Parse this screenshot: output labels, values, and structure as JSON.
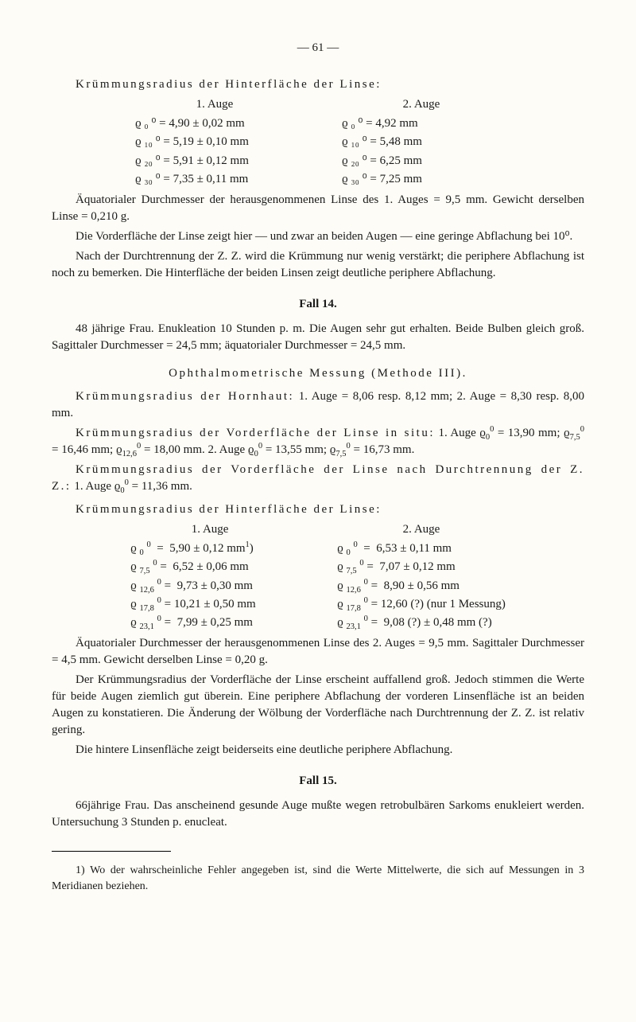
{
  "pageNumber": "— 61 —",
  "topTable": {
    "title": "Krümmungsradius der Hinterfläche der Linse:",
    "col1Header": "1. Auge",
    "col2Header": "2. Auge",
    "col1": [
      "ϱ ₀ ⁰ = 4,90 ± 0,02 mm",
      "ϱ ₁₀ ⁰ = 5,19 ± 0,10 mm",
      "ϱ ₂₀ ⁰ = 5,91 ± 0,12 mm",
      "ϱ ₃₀ ⁰ = 7,35 ± 0,11 mm"
    ],
    "col2": [
      "ϱ ₀ ⁰ = 4,92 mm",
      "ϱ ₁₀ ⁰ = 5,48 mm",
      "ϱ ₂₀ ⁰ = 6,25 mm",
      "ϱ ₃₀ ⁰ = 7,25 mm"
    ]
  },
  "p1": "Äquatorialer Durchmesser der herausgenommenen Linse des 1. Auges = 9,5 mm. Gewicht derselben Linse = 0,210 g.",
  "p2": "Die Vorderfläche der Linse zeigt hier — und zwar an beiden Augen — eine geringe Abflachung bei 10⁰.",
  "p3": "Nach der Durchtrennung der Z. Z. wird die Krümmung nur wenig verstärkt; die periphere Abflachung ist noch zu bemerken. Die Hinterfläche der beiden Linsen zeigt deutliche periphere Abflachung.",
  "fall14": {
    "heading": "Fall 14.",
    "p1": "48 jährige Frau. Enukleation 10 Stunden p. m. Die Augen sehr gut erhalten. Beide Bulben gleich groß. Sagittaler Durchmesser = 24,5 mm; äquatorialer Durchmesser = 24,5 mm.",
    "subTitle": "Ophthalmometrische Messung (Methode III).",
    "p2": "Krümmungsradius der Hornhaut: 1. Auge = 8,06 resp. 8,12 mm; 2. Auge = 8,30 resp. 8,00 mm.",
    "p3a": "Krümmungsradius der Vorderfläche der Linse in situ:",
    "p3b": "1. Auge ϱ₀⁰ = 13,90 mm; ϱ₇,₅⁰ = 16,46 mm; ϱ₁₂,₆⁰ = 18,00 mm. 2. Auge ϱ₀⁰ = 13,55 mm; ϱ₇,₅⁰ = 16,73 mm.",
    "p4": "Krümmungsradius der Vorderfläche der Linse nach Durchtrennung der Z. Z.: 1. Auge ϱ₀⁰ = 11,36 mm.",
    "tableTitle": "Krümmungsradius der Hinterfläche der Linse:",
    "table": {
      "col1Header": "1. Auge",
      "col2Header": "2. Auge",
      "col1": [
        "ϱ ₀ ⁰  =  5,90 ± 0,12 mm¹)",
        "ϱ ₇,₅ ⁰ =  6,52 ± 0,06 mm",
        "ϱ ₁₂,₆ ⁰ =  9,73 ± 0,30 mm",
        "ϱ ₁₇,₈ ⁰ = 10,21 ± 0,50 mm",
        "ϱ ₂₃,₁ ⁰ =  7,99 ± 0,25 mm"
      ],
      "col2": [
        "ϱ ₀ ⁰  =  6,53 ± 0,11 mm",
        "ϱ ₇,₅ ⁰ =  7,07 ± 0,12 mm",
        "ϱ ₁₂,₆ ⁰ =  8,90 ± 0,56 mm",
        "ϱ ₁₇,₈ ⁰ = 12,60 (?) (nur 1 Messung)",
        "ϱ ₂₃,₁ ⁰ =  9,08 (?) ± 0,48 mm (?)"
      ]
    },
    "p5": "Äquatorialer Durchmesser der herausgenommenen Linse des 2. Auges = 9,5 mm. Sagittaler Durchmesser = 4,5 mm. Gewicht derselben Linse = 0,20 g.",
    "p6": "Der Krümmungsradius der Vorderfläche der Linse erscheint auffallend groß. Jedoch stimmen die Werte für beide Augen ziemlich gut überein. Eine periphere Abflachung der vorderen Linsenfläche ist an beiden Augen zu konstatieren. Die Änderung der Wölbung der Vorderfläche nach Durchtrennung der Z. Z. ist relativ gering.",
    "p7": "Die hintere Linsenfläche zeigt beiderseits eine deutliche periphere Abflachung."
  },
  "fall15": {
    "heading": "Fall 15.",
    "p1": "66jährige Frau. Das anscheinend gesunde Auge mußte wegen retrobulbären Sarkoms enukleiert werden. Untersuchung 3 Stunden p. enucleat."
  },
  "footnote": "1) Wo der wahrscheinliche Fehler angegeben ist, sind die Werte Mittelwerte, die sich auf Messungen in 3 Meridianen beziehen."
}
